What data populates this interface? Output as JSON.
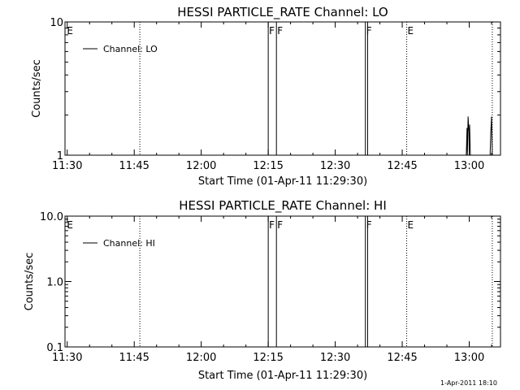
{
  "chart_data": [
    {
      "type": "line",
      "title": "HESSI PARTICLE_RATE Channel: LO",
      "xlabel": "Start Time (01-Apr-11 11:29:30)",
      "ylabel": "Counts/sec",
      "y_scale": "log",
      "ylim": [
        1,
        10
      ],
      "y_ticks": [
        1,
        10
      ],
      "y_tick_labels": [
        "1",
        "10"
      ],
      "xlim": [
        "11:29:30",
        "13:07:00"
      ],
      "x_ticks": [
        "11:30",
        "11:45",
        "12:00",
        "12:15",
        "12:30",
        "12:45",
        "13:00"
      ],
      "x_tick_labels": [
        "11:30",
        "11:45",
        "12:00",
        "12:15",
        "12:30",
        "12:45",
        "13:00"
      ],
      "legend": {
        "entries": [
          "Channel: LO"
        ],
        "position": "top-left"
      },
      "series": [
        {
          "name": "Channel: LO",
          "x": [
            "12:54:30",
            "12:59:20",
            "12:59:30",
            "12:59:35",
            "12:59:45",
            "12:59:55",
            "13:00:00",
            "13:00:05",
            "13:00:15",
            "13:04:40",
            "13:04:50",
            "13:05:00",
            "13:05:10",
            "13:07:00"
          ],
          "y": [
            1,
            1,
            1.6,
            1,
            1.95,
            1.5,
            1.05,
            1.7,
            1,
            1,
            1.5,
            1.95,
            1,
            1
          ]
        }
      ],
      "annotations": [
        {
          "text": "E",
          "x": "11:29:45",
          "line": "none"
        },
        {
          "text": "",
          "x": "11:46:15",
          "line": "dotted"
        },
        {
          "text": "F",
          "x": "12:15:00",
          "line": "solid"
        },
        {
          "text": "F",
          "x": "12:16:50",
          "line": "solid"
        },
        {
          "text": "F",
          "x": "12:36:45",
          "line": "solid"
        },
        {
          "text": "",
          "x": "12:37:15",
          "line": "solid"
        },
        {
          "text": "E",
          "x": "12:46:00",
          "line": "dotted"
        },
        {
          "text": "",
          "x": "13:05:10",
          "line": "dotted"
        }
      ]
    },
    {
      "type": "line",
      "title": "HESSI PARTICLE_RATE Channel: HI",
      "xlabel": "Start Time (01-Apr-11 11:29:30)",
      "ylabel": "Counts/sec",
      "y_scale": "log",
      "ylim": [
        0.1,
        10
      ],
      "y_ticks": [
        0.1,
        1,
        10
      ],
      "y_tick_labels": [
        "0.1",
        "1.0",
        "10.0"
      ],
      "xlim": [
        "11:29:30",
        "13:07:00"
      ],
      "x_ticks": [
        "11:30",
        "11:45",
        "12:00",
        "12:15",
        "12:30",
        "12:45",
        "13:00"
      ],
      "x_tick_labels": [
        "11:30",
        "11:45",
        "12:00",
        "12:15",
        "12:30",
        "12:45",
        "13:00"
      ],
      "legend": {
        "entries": [
          "Channel: HI"
        ],
        "position": "top-left"
      },
      "series": [
        {
          "name": "Channel: HI",
          "x": [],
          "y": []
        }
      ],
      "annotations": [
        {
          "text": "E",
          "x": "11:29:45",
          "line": "none"
        },
        {
          "text": "",
          "x": "11:46:15",
          "line": "dotted"
        },
        {
          "text": "F",
          "x": "12:15:00",
          "line": "solid"
        },
        {
          "text": "F",
          "x": "12:16:50",
          "line": "solid"
        },
        {
          "text": "F",
          "x": "12:36:45",
          "line": "solid"
        },
        {
          "text": "",
          "x": "12:37:15",
          "line": "solid"
        },
        {
          "text": "E",
          "x": "12:46:00",
          "line": "dotted"
        },
        {
          "text": "",
          "x": "13:05:10",
          "line": "dotted"
        }
      ]
    }
  ],
  "footer": {
    "timestamp": "1-Apr-2011 18:10"
  }
}
